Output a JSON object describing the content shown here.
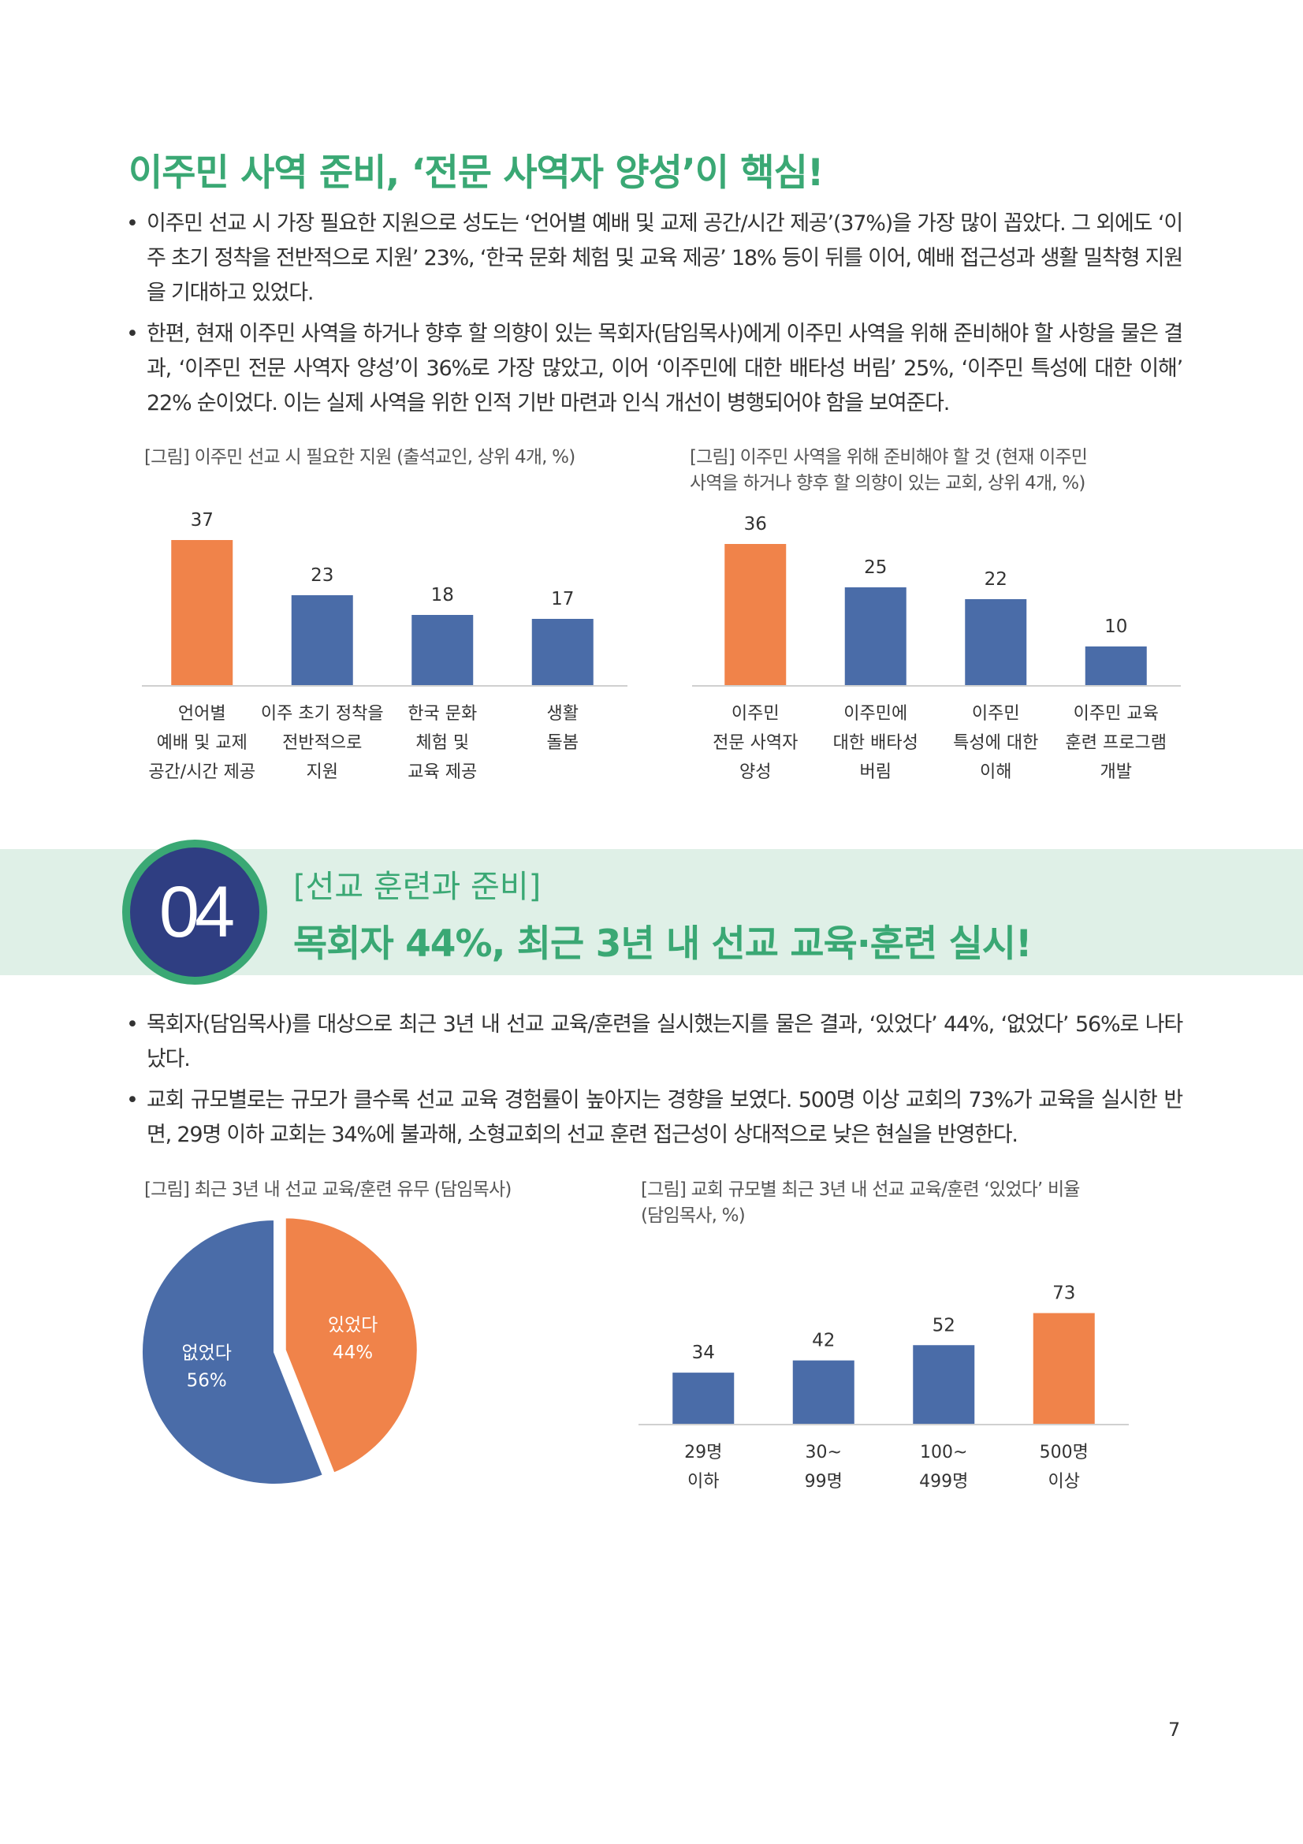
{
  "section1": {
    "title": "이주민 사역 준비, ‘전문 사역자 양성’이 핵심!",
    "bullets": [
      "이주민 선교 시 가장 필요한 지원으로 성도는 ‘언어별 예배 및 교제 공간/시간 제공’(37%)을 가장 많이 꼽았다. 그 외에도 ‘이주 초기 정착을 전반적으로 지원’ 23%, ‘한국 문화 체험 및 교육 제공’ 18% 등이 뒤를 이어, 예배 접근성과 생활 밀착형 지원을 기대하고 있었다.",
      "한편, 현재 이주민 사역을 하거나 향후 할 의향이 있는 목회자(담임목사)에게 이주민 사역을 위해 준비해야 할 사항을 물은 결과, ‘이주민 전문 사역자 양성’이 36%로 가장 많았고, 이어 ‘이주민에 대한 배타성 버림’ 25%, ‘이주민 특성에 대한 이해’ 22% 순이었다. 이는 실제 사역을 위한 인적 기반 마련과 인식 개선이 병행되어야 함을 보여준다."
    ]
  },
  "section2": {
    "number": "04",
    "subtitle": "[선교 훈련과 준비]",
    "title": "목회자 44%, 최근 3년 내 선교 교육·훈련 실시!",
    "bullets": [
      "목회자(담임목사)를 대상으로 최근 3년 내 선교 교육/훈련을 실시했는지를 물은 결과, ‘있었다’ 44%, ‘없었다’ 56%로 나타났다.",
      "교회 규모별로는 규모가 클수록 선교 교육 경험률이 높아지는 경향을 보였다. 500명 이상 교회의 73%가 교육을 실시한 반면, 29명 이하 교회는 34%에 불과해, 소형교회의 선교 훈련 접근성이 상대적으로 낮은 현실을 반영한다."
    ]
  },
  "page_number": "7",
  "colors": {
    "accent": "#3aa874",
    "blue": "#4a6ca8",
    "orange": "#f0834a",
    "navy": "#2f3e82",
    "band": "#dff0e7"
  },
  "chart_data": [
    {
      "type": "bar",
      "title": "[그림] 이주민 선교 시 필요한 지원 (출석교인, 상위 4개, %)",
      "categories": [
        "언어별\n예배 및 교제\n공간/시간 제공",
        "이주 초기 정착을\n전반적으로\n지원",
        "한국 문화\n체험 및\n교육 제공",
        "생활\n돌봄"
      ],
      "values": [
        37,
        23,
        18,
        17
      ],
      "highlight_index": 0,
      "ylim": [
        0,
        40
      ]
    },
    {
      "type": "bar",
      "title": "[그림] 이주민 사역을 위해 준비해야 할 것 (현재 이주민\n사역을 하거나 향후 할 의향이 있는 교회, 상위 4개, %)",
      "categories": [
        "이주민\n전문 사역자\n양성",
        "이주민에\n대한 배타성\n버림",
        "이주민\n특성에 대한\n이해",
        "이주민 교육\n훈련 프로그램\n개발"
      ],
      "values": [
        36,
        25,
        22,
        10
      ],
      "highlight_index": 0,
      "ylim": [
        0,
        40
      ]
    },
    {
      "type": "pie",
      "title": "[그림] 최근 3년 내 선교 교육/훈련 유무 (담임목사)",
      "slices": [
        {
          "label": "있었다",
          "value": 44,
          "display": "44%"
        },
        {
          "label": "없었다",
          "value": 56,
          "display": "56%"
        }
      ]
    },
    {
      "type": "bar",
      "title": "[그림] 교회 규모별 최근 3년 내 선교 교육/훈련 ‘있었다’ 비율\n(담임목사, %)",
      "categories": [
        "29명\n이하",
        "30~\n99명",
        "100~\n499명",
        "500명\n이상"
      ],
      "values": [
        34,
        42,
        52,
        73
      ],
      "highlight_index": 3,
      "ylim": [
        0,
        80
      ]
    }
  ]
}
